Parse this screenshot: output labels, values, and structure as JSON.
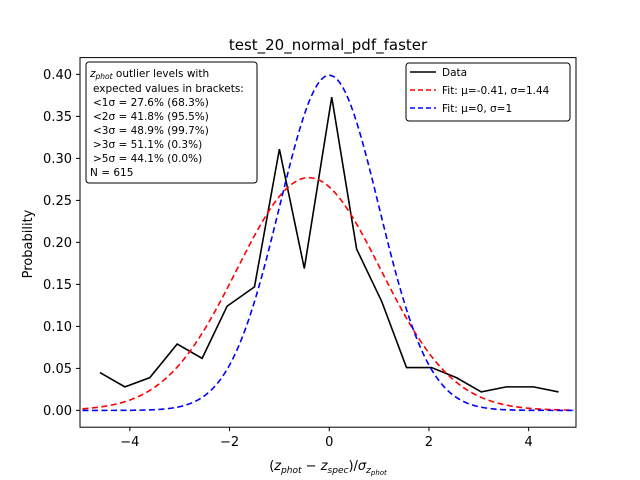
{
  "chart_data": {
    "type": "line",
    "title": "test_20_normal_pdf_faster",
    "xlabel": "(z_phot − z_spec)/σ_z_phot",
    "ylabel": "Probability",
    "xlim": [
      -5,
      4.95
    ],
    "ylim": [
      -0.02,
      0.42
    ],
    "xticks": [
      -4,
      -2,
      0,
      2,
      4
    ],
    "xtick_labels": [
      "−4",
      "−2",
      "0",
      "2",
      "4"
    ],
    "yticks": [
      0.0,
      0.05,
      0.1,
      0.15,
      0.2,
      0.25,
      0.3,
      0.35,
      0.4
    ],
    "ytick_labels": [
      "0.00",
      "0.05",
      "0.10",
      "0.15",
      "0.20",
      "0.25",
      "0.30",
      "0.35",
      "0.40"
    ],
    "grid": false,
    "legend_position": "top-right",
    "series": [
      {
        "name": "Data",
        "kind": "data",
        "color": "#000000",
        "dash": "solid",
        "x": [
          -4.6,
          -4.1,
          -3.6,
          -3.05,
          -2.55,
          -2.05,
          -1.5,
          -1.0,
          -0.5,
          0.05,
          0.55,
          1.05,
          1.55,
          2.05,
          2.55,
          3.05,
          3.55,
          4.1,
          4.6
        ],
        "y": [
          0.045,
          0.028,
          0.039,
          0.079,
          0.062,
          0.124,
          0.147,
          0.311,
          0.169,
          0.373,
          0.192,
          0.13,
          0.051,
          0.051,
          0.039,
          0.022,
          0.028,
          0.028,
          0.022
        ]
      },
      {
        "name": "Fit: μ=-0.41, σ=1.44",
        "kind": "gaussian",
        "mu": -0.41,
        "sigma": 1.44,
        "color": "#ff0000",
        "dash": "dashed",
        "x_range": [
          -4.95,
          4.9
        ]
      },
      {
        "name": "Fit: μ=0, σ=1",
        "kind": "gaussian",
        "mu": 0,
        "sigma": 1,
        "color": "#0000ff",
        "dash": "dashed",
        "x_range": [
          -4.95,
          4.9
        ]
      }
    ],
    "stats_box": {
      "lines": [
        "z_phot outlier levels with",
        "expected values in brackets:",
        "<1σ = 27.6% (68.3%)",
        "<2σ = 41.8% (95.5%)",
        "<3σ = 48.9% (99.7%)",
        ">3σ = 51.1% (0.3%)",
        ">5σ = 44.1% (0.0%)",
        "N = 615"
      ]
    }
  }
}
